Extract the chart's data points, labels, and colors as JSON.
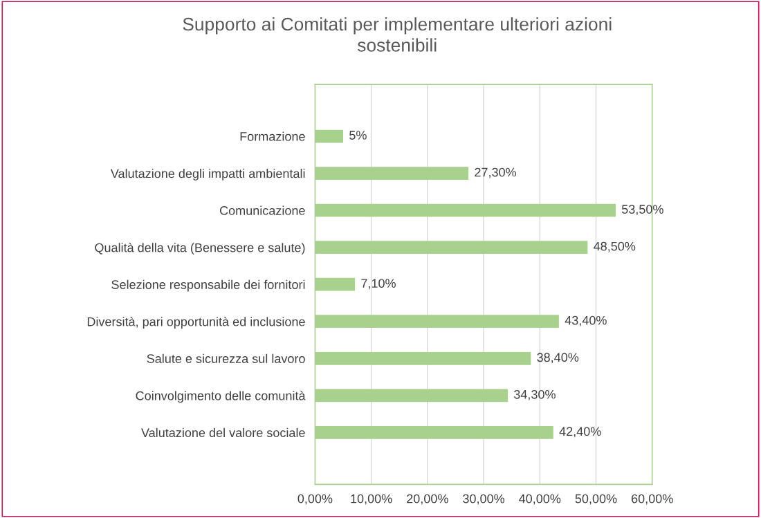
{
  "chart_data": {
    "type": "bar",
    "orientation": "horizontal",
    "title": "Supporto ai Comitati per implementare ulteriori azioni\nsostenibili",
    "categories": [
      "Formazione",
      "Valutazione degli impatti ambientali",
      "Comunicazione",
      "Qualità della vita (Benessere e salute)",
      "Selezione responsabile dei fornitori",
      "Diversità, pari opportunità ed inclusione",
      "Salute e sicurezza sul lavoro",
      "Coinvolgimento delle comunità",
      "Valutazione del valore sociale"
    ],
    "values": [
      5,
      27.3,
      53.5,
      48.5,
      7.1,
      43.4,
      38.4,
      34.3,
      42.4
    ],
    "value_labels": [
      "5%",
      "27,30%",
      "53,50%",
      "48,50%",
      "7,10%",
      "43,40%",
      "38,40%",
      "34,30%",
      "42,40%"
    ],
    "color": "#a9d18e",
    "xlim": [
      0,
      60
    ],
    "xticks": [
      {
        "value": 0,
        "label": "0,00%"
      },
      {
        "value": 10,
        "label": "10,00%"
      },
      {
        "value": 20,
        "label": "20,00%"
      },
      {
        "value": 30,
        "label": "30,00%"
      },
      {
        "value": 40,
        "label": "40,00%"
      },
      {
        "value": 50,
        "label": "50,00%"
      },
      {
        "value": 60,
        "label": "60,00%"
      }
    ],
    "grid": "x"
  }
}
